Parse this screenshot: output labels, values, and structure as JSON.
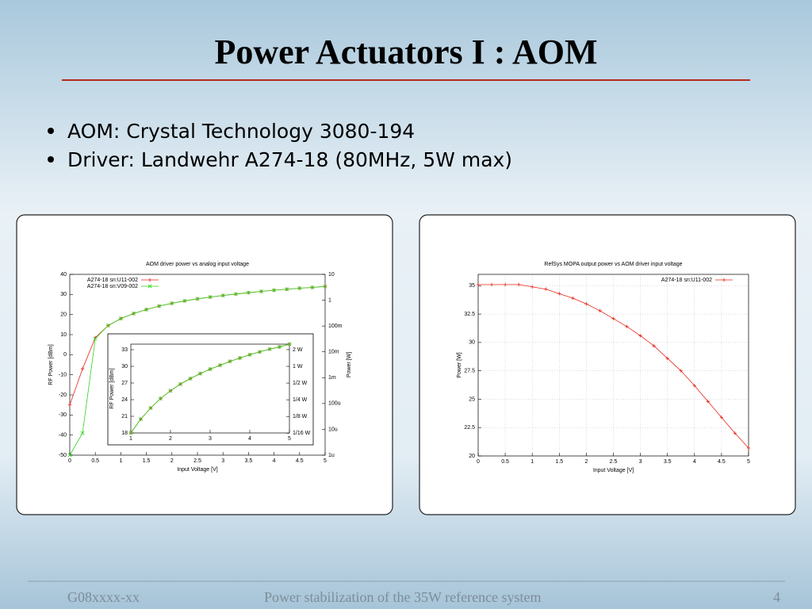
{
  "title": "Power Actuators I : AOM",
  "bullets": [
    "AOM: Crystal Technology 3080-194",
    "Driver: Landwehr A274-18 (80MHz, 5W max)"
  ],
  "footer": {
    "left": "G08xxxx-xx",
    "center": "Power stabilization of the 35W reference system",
    "page": "4"
  },
  "chart_data": [
    {
      "type": "line",
      "title": "AOM driver power vs analog input voltage",
      "x_label": "Input Voltage [V]",
      "y_label": "RF Power [dBm]",
      "y2_label": "Power [W]",
      "x": [
        0,
        0.25,
        0.5,
        0.75,
        1,
        1.25,
        1.5,
        1.75,
        2,
        2.25,
        2.5,
        2.75,
        3,
        3.25,
        3.5,
        3.75,
        4,
        4.25,
        4.5,
        4.75,
        5
      ],
      "series": [
        {
          "name": "A274-18 sn:U11-002",
          "color": "#e8251c",
          "marker": "plus",
          "values": [
            -25,
            -7,
            8.5,
            14.5,
            18,
            20.5,
            22.5,
            24.2,
            25.6,
            26.8,
            27.8,
            28.7,
            29.5,
            30.2,
            30.9,
            31.5,
            32.1,
            32.6,
            33.1,
            33.5,
            34
          ]
        },
        {
          "name": "A274-18 sn:V09-002",
          "color": "#2fd41c",
          "marker": "cross",
          "values": [
            -50,
            -39,
            8,
            14.5,
            18,
            20.5,
            22.5,
            24.2,
            25.6,
            26.8,
            27.8,
            28.7,
            29.5,
            30.2,
            30.9,
            31.5,
            32.1,
            32.6,
            33.1,
            33.5,
            34
          ]
        }
      ],
      "xlim": [
        0,
        5
      ],
      "xticks": [
        0,
        0.5,
        1,
        1.5,
        2,
        2.5,
        3,
        3.5,
        4,
        4.5,
        5
      ],
      "ylim": [
        -50,
        40
      ],
      "yticks": [
        -50,
        -40,
        -30,
        -20,
        -10,
        0,
        10,
        20,
        30,
        40
      ],
      "y2lim": [
        1e-06,
        10
      ],
      "y2_log": true,
      "y2ticks": [
        {
          "value": 1e-06,
          "label": "1u"
        },
        {
          "value": 1e-05,
          "label": "10u"
        },
        {
          "value": 0.0001,
          "label": "100u"
        },
        {
          "value": 0.001,
          "label": "1m"
        },
        {
          "value": 0.01,
          "label": "10m"
        },
        {
          "value": 0.1,
          "label": "100m"
        },
        1,
        10
      ],
      "grid": false,
      "legend": "top-left"
    },
    {
      "type": "line",
      "y_label": "RF Power [dBm]",
      "x": [
        1,
        1.25,
        1.5,
        1.75,
        2,
        2.25,
        2.5,
        2.75,
        3,
        3.25,
        3.5,
        3.75,
        4,
        4.25,
        4.5,
        4.75,
        5
      ],
      "series": [
        {
          "color": "#e8251c",
          "marker": "plus",
          "values": [
            18,
            20.5,
            22.5,
            24.2,
            25.6,
            26.8,
            27.8,
            28.7,
            29.5,
            30.2,
            30.9,
            31.5,
            32.1,
            32.6,
            33.1,
            33.5,
            34
          ]
        },
        {
          "color": "#2fd41c",
          "marker": "cross",
          "values": [
            18,
            20.5,
            22.5,
            24.2,
            25.6,
            26.8,
            27.8,
            28.7,
            29.5,
            30.2,
            30.9,
            31.5,
            32.1,
            32.6,
            33.1,
            33.5,
            34
          ]
        }
      ],
      "xlim": [
        1,
        5
      ],
      "xticks": [
        1,
        2,
        3,
        4,
        5
      ],
      "ylim": [
        18,
        34
      ],
      "yticks": [
        18,
        21,
        24,
        27,
        30,
        33
      ],
      "y2lim": [
        0.0631,
        2.512
      ],
      "y2_log": true,
      "y2ticks": [
        {
          "value": 0.0625,
          "label": "1/16 W"
        },
        {
          "value": 0.125,
          "label": "1/8 W"
        },
        {
          "value": 0.25,
          "label": "1/4 W"
        },
        {
          "value": 0.5,
          "label": "1/2 W"
        },
        {
          "value": 1,
          "label": "1 W"
        },
        {
          "value": 2,
          "label": "2 W"
        }
      ],
      "grid": false
    },
    {
      "type": "line",
      "title": "RefSys MOPA output power vs AOM driver input voltage",
      "x_label": "Input Voltage [V]",
      "y_label": "Power [W]",
      "x": [
        0,
        0.25,
        0.5,
        0.75,
        1,
        1.25,
        1.5,
        1.75,
        2,
        2.25,
        2.5,
        2.75,
        3,
        3.25,
        3.5,
        3.75,
        4,
        4.25,
        4.5,
        4.75,
        5
      ],
      "series": [
        {
          "name": "A274-18 sn:U11-002",
          "color": "#e8251c",
          "marker": "plus",
          "values": [
            35.1,
            35.1,
            35.1,
            35.1,
            34.9,
            34.7,
            34.3,
            33.9,
            33.4,
            32.8,
            32.1,
            31.4,
            30.6,
            29.7,
            28.6,
            27.5,
            26.2,
            24.8,
            23.4,
            22,
            20.7
          ]
        }
      ],
      "xlim": [
        0,
        5
      ],
      "xticks": [
        0,
        0.5,
        1,
        1.5,
        2,
        2.5,
        3,
        3.5,
        4,
        4.5,
        5
      ],
      "ylim": [
        20,
        36
      ],
      "yticks": [
        20,
        22.5,
        25,
        27.5,
        30,
        32.5,
        35
      ],
      "grid": true,
      "legend": "top-right"
    }
  ]
}
